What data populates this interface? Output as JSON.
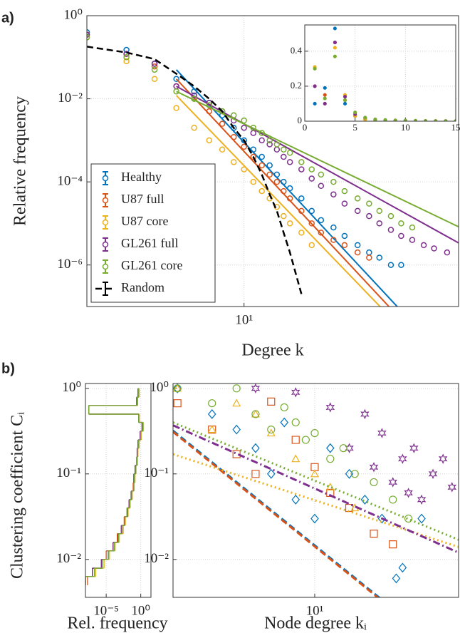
{
  "chart_data": [
    {
      "type": "line",
      "label": "a)",
      "xlabel": "Degree k",
      "ylabel": "Relative frequency",
      "xscale": "log",
      "yscale": "log",
      "grid": true,
      "legend": "lower left",
      "xlim": [
        2,
        90
      ],
      "ylim": [
        1e-07,
        1
      ],
      "xticks": [
        {
          "value": 10,
          "label": "10¹"
        }
      ],
      "yticks": [
        {
          "value": 1,
          "label": "10⁰"
        },
        {
          "value": 0.01,
          "label": "10⁻²"
        },
        {
          "value": 0.0001,
          "label": "10⁻⁴"
        },
        {
          "value": 1e-06,
          "label": "10⁻⁶"
        }
      ],
      "x": [
        2,
        3,
        4,
        5,
        6,
        7,
        8,
        9,
        10,
        11,
        12,
        13,
        14,
        15,
        16,
        18,
        20,
        22,
        25,
        28,
        32,
        36,
        40,
        45,
        50,
        56,
        63,
        70,
        80
      ],
      "series": [
        {
          "name": "Healthy",
          "color": "#0072bd",
          "values": [
            0.4,
            0.15,
            0.07,
            0.03,
            0.015,
            0.008,
            0.004,
            0.002,
            0.001,
            0.0006,
            0.0004,
            0.00025,
            0.00015,
            0.0001,
            7e-05,
            4e-05,
            2e-05,
            1.2e-05,
            8e-06,
            5e-06,
            3e-06,
            2e-06,
            1.5e-06,
            1e-06,
            1e-06,
            null,
            null,
            null,
            null
          ],
          "fit": {
            "x": [
              5,
              90
            ],
            "y": [
              0.05,
              2.6e-09
            ]
          }
        },
        {
          "name": "U87 full",
          "color": "#d95319",
          "values": [
            0.35,
            0.12,
            0.06,
            0.02,
            0.01,
            0.005,
            0.0025,
            0.0012,
            0.0007,
            0.0004,
            0.00025,
            0.00015,
            0.0001,
            6e-05,
            4e-05,
            2e-05,
            1e-05,
            6e-06,
            4e-06,
            3e-06,
            2e-06,
            1.5e-06,
            null,
            null,
            null,
            null,
            null,
            null,
            null
          ],
          "fit": {
            "x": [
              5,
              90
            ],
            "y": [
              0.03,
              1.6e-09
            ]
          }
        },
        {
          "name": "U87 core",
          "color": "#edb120",
          "values": [
            0.3,
            0.08,
            0.03,
            0.006,
            0.002,
            0.001,
            0.0006,
            0.0003,
            0.0002,
            0.0001,
            6e-05,
            4e-05,
            2.5e-05,
            1.5e-05,
            1e-05,
            6e-06,
            3e-06,
            null,
            null,
            null,
            null,
            null,
            null,
            null,
            null,
            null,
            null,
            null,
            null
          ],
          "fit": {
            "x": [
              5,
              90
            ],
            "y": [
              0.012,
              1.1e-09
            ]
          }
        },
        {
          "name": "GL261 full",
          "color": "#7e2f8e",
          "values": [
            0.35,
            0.12,
            0.07,
            0.02,
            0.012,
            0.008,
            0.005,
            0.003,
            0.002,
            0.0015,
            0.001,
            0.0008,
            0.0006,
            0.0004,
            0.0003,
            0.0002,
            0.00012,
            8e-05,
            5e-05,
            3e-05,
            2e-05,
            1.5e-05,
            1e-05,
            7e-06,
            5e-06,
            4e-06,
            3e-06,
            2.5e-06,
            2e-06
          ],
          "fit": {
            "x": [
              5,
              90
            ],
            "y": [
              0.02,
              3.4e-06
            ]
          }
        },
        {
          "name": "GL261 core",
          "color": "#77ac30",
          "values": [
            0.3,
            0.1,
            0.05,
            0.015,
            0.01,
            0.007,
            0.005,
            0.004,
            0.003,
            0.002,
            0.0015,
            0.001,
            0.0008,
            0.0006,
            0.0005,
            0.0003,
            0.0002,
            0.00015,
            0.0001,
            6e-05,
            4e-05,
            3e-05,
            2e-05,
            1.5e-05,
            1e-05,
            8e-06,
            null,
            null,
            null
          ],
          "fit": {
            "x": [
              5,
              90
            ],
            "y": [
              0.015,
              8.3e-06
            ]
          }
        },
        {
          "name": "Random",
          "color": "#000000",
          "linestyle": "dashed",
          "values": [
            0.18,
            0.13,
            0.09,
            0.04,
            0.02,
            0.01,
            0.005,
            0.002,
            0.001,
            0.0004,
            0.00015,
            5e-05,
            2e-05,
            6e-06,
            2e-06,
            2e-07,
            null,
            null,
            null,
            null,
            null,
            null,
            null,
            null,
            null,
            null,
            null,
            null,
            null
          ]
        }
      ]
    },
    {
      "type": "scatter",
      "xlim": [
        0,
        15
      ],
      "ylim": [
        0,
        0.55
      ],
      "grid": true,
      "xticks": [
        0,
        5,
        10,
        15
      ],
      "yticks": [
        0,
        0.2,
        0.4
      ],
      "x": [
        1,
        2,
        3,
        4,
        5,
        6,
        7,
        8,
        9,
        10,
        11,
        12,
        13,
        14,
        15
      ],
      "series": [
        {
          "color": "#0072bd",
          "values": [
            0.1,
            0.19,
            0.53,
            0.1,
            0.03,
            0.012,
            0.006,
            0.003,
            0.002,
            0.001,
            0.0005,
            0.0003,
            0.0002,
            0.0001,
            0.0001
          ]
        },
        {
          "color": "#d95319",
          "values": [
            0.2,
            0.15,
            0.45,
            0.12,
            0.03,
            0.01,
            0.005,
            0.003,
            0.001,
            0.001,
            0.0005,
            0.0003,
            0.0002,
            0.0001,
            0.0001
          ]
        },
        {
          "color": "#edb120",
          "values": [
            0.31,
            0.1,
            0.42,
            0.15,
            0.03,
            0.01,
            0.004,
            0.002,
            0.001,
            0.0005,
            0.0003,
            0.0002,
            0.0001,
            0.0001,
            0.0001
          ]
        },
        {
          "color": "#7e2f8e",
          "values": [
            0.2,
            0.1,
            0.45,
            0.14,
            0.04,
            0.02,
            0.01,
            0.006,
            0.004,
            0.003,
            0.002,
            0.0015,
            0.001,
            0.0008,
            0.0006
          ]
        },
        {
          "color": "#77ac30",
          "values": [
            0.3,
            0.13,
            0.37,
            0.12,
            0.05,
            0.02,
            0.01,
            0.007,
            0.005,
            0.004,
            0.003,
            0.002,
            0.0015,
            0.001,
            0.0008
          ]
        }
      ]
    },
    {
      "type": "histogram",
      "label": "b)",
      "orientation": "horizontal",
      "xlabel": "Rel. frequency",
      "ylabel": "Clustering coefficient Cᵢ",
      "xscale": "log",
      "yscale": "log",
      "grid": true,
      "xlim": [
        1e-08,
        30
      ],
      "ylim": [
        0.0036,
        1.14
      ],
      "xticks": [
        {
          "value": 1e-05,
          "label": "10⁻⁵"
        },
        {
          "value": 1,
          "label": "10⁰"
        }
      ],
      "yticks": [
        {
          "value": 0.01,
          "label": "10⁻²"
        },
        {
          "value": 0.1,
          "label": "10⁻¹"
        },
        {
          "value": 1,
          "label": "10⁰"
        }
      ],
      "bins": [
        0.005,
        0.0063,
        0.0079,
        0.01,
        0.0126,
        0.0158,
        0.02,
        0.025,
        0.0316,
        0.04,
        0.05,
        0.063,
        0.079,
        0.1,
        0.126,
        0.158,
        0.2,
        0.25,
        0.316,
        0.4,
        0.5,
        0.63,
        0.79,
        1.0
      ],
      "series": [
        {
          "color": "#0072bd",
          "values": [
            1e-08,
            1e-07,
            3e-06,
            2e-05,
            0.0001,
            0.0005,
            0.002,
            0.005,
            0.01,
            0.02,
            0.05,
            0.1,
            0.1,
            0.2,
            0.3,
            0.3,
            0.5,
            1,
            2,
            0.5,
            3e-08,
            0.3,
            0.5
          ]
        },
        {
          "color": "#d95319",
          "values": [
            2e-08,
            1e-07,
            2e-06,
            1e-05,
            0.0001,
            0.0004,
            0.002,
            0.004,
            0.01,
            0.03,
            0.05,
            0.08,
            0.12,
            0.2,
            0.25,
            0.35,
            0.5,
            1,
            2,
            0.6,
            3e-08,
            0.35,
            0.5
          ]
        },
        {
          "color": "#edb120",
          "values": [
            1e-08,
            3e-07,
            5e-06,
            3e-05,
            0.0002,
            0.0008,
            0.003,
            0.006,
            0.015,
            0.03,
            0.06,
            0.1,
            0.15,
            0.2,
            0.3,
            0.4,
            0.6,
            1.2,
            2.5,
            0.6,
            3e-08,
            0.3,
            0.6
          ]
        },
        {
          "color": "#7e2f8e",
          "values": [
            1e-08,
            1e-07,
            2e-06,
            2e-05,
            0.0001,
            0.0005,
            0.0015,
            0.005,
            0.012,
            0.02,
            0.04,
            0.1,
            0.1,
            0.15,
            0.3,
            0.3,
            0.4,
            0.8,
            1.5,
            0.5,
            3e-08,
            0.25,
            0.4
          ]
        },
        {
          "color": "#77ac30",
          "values": [
            1e-08,
            2e-07,
            3e-06,
            2e-05,
            0.00015,
            0.0006,
            0.002,
            0.005,
            0.01,
            0.025,
            0.05,
            0.1,
            0.12,
            0.2,
            0.3,
            0.35,
            0.5,
            1,
            2,
            0.5,
            3e-08,
            0.3,
            0.5
          ]
        }
      ]
    },
    {
      "type": "scatter",
      "xlabel": "Node degree kᵢ",
      "xscale": "log",
      "yscale": "log",
      "grid": true,
      "xlim": [
        1.9,
        54
      ],
      "ylim": [
        0.0036,
        1.14
      ],
      "xticks": [
        {
          "value": 10,
          "label": "10¹"
        }
      ],
      "yticks": [
        {
          "value": 0.01,
          "label": "10⁻²"
        },
        {
          "value": 0.1,
          "label": "10⁻¹"
        },
        {
          "value": 1,
          "label": "10⁰"
        }
      ],
      "series": [
        {
          "color": "#0072bd",
          "marker": "diamond",
          "x": [
            2,
            3,
            4,
            5,
            6,
            7,
            8,
            10,
            12,
            15,
            18,
            22,
            26,
            28,
            35
          ],
          "values": [
            1,
            0.5,
            0.33,
            0.2,
            0.1,
            0.4,
            0.05,
            0.03,
            0.2,
            0.1,
            0.05,
            0.03,
            0.006,
            0.008,
            0.03
          ],
          "fit": {
            "x": [
              1.9,
              26.4
            ],
            "y": [
              0.32,
              0.0024
            ]
          },
          "linestyle": "dashed"
        },
        {
          "color": "#d95319",
          "marker": "square",
          "x": [
            2,
            3,
            4,
            5,
            6,
            8,
            10,
            12,
            15,
            20,
            25
          ],
          "values": [
            0.67,
            0.33,
            0.17,
            0.1,
            0.7,
            0.25,
            0.12,
            0.06,
            0.04,
            0.02,
            0.015
          ],
          "fit": {
            "x": [
              1.9,
              26
            ],
            "y": [
              0.31,
              0.0024
            ]
          },
          "linestyle": "dashed"
        },
        {
          "color": "#edb120",
          "marker": "triangle",
          "x": [
            2,
            3,
            4,
            5,
            6,
            8,
            10,
            12,
            16
          ],
          "values": [
            1,
            0.33,
            0.67,
            0.5,
            0.3,
            0.15,
            0.1,
            0.07,
            0.04
          ],
          "fit": {
            "x": [
              1.9,
              54
            ],
            "y": [
              0.17,
              0.014
            ]
          },
          "linestyle": "dotted"
        },
        {
          "color": "#7e2f8e",
          "marker": "hexagram",
          "x": [
            5,
            8,
            12,
            15,
            18,
            20,
            22,
            25,
            28,
            30,
            32,
            35,
            40,
            45,
            50
          ],
          "values": [
            1,
            0.9,
            0.6,
            0.2,
            0.5,
            0.12,
            0.3,
            0.08,
            0.15,
            0.06,
            0.2,
            0.05,
            0.1,
            0.15,
            0.07
          ],
          "fit": {
            "x": [
              1.9,
              54
            ],
            "y": [
              0.37,
              0.012
            ]
          },
          "linestyle": "dashdot"
        },
        {
          "color": "#77ac30",
          "marker": "circle",
          "x": [
            2,
            3,
            4,
            5,
            6,
            7,
            8,
            9,
            10,
            12,
            14,
            16,
            20,
            25,
            30
          ],
          "values": [
            1,
            0.67,
            1,
            0.5,
            0.33,
            0.6,
            0.4,
            0.25,
            0.3,
            0.15,
            0.2,
            0.1,
            0.08,
            0.05,
            0.03
          ],
          "fit": {
            "x": [
              1.9,
              54
            ],
            "y": [
              0.4,
              0.017
            ]
          },
          "linestyle": "dotted"
        }
      ]
    }
  ]
}
